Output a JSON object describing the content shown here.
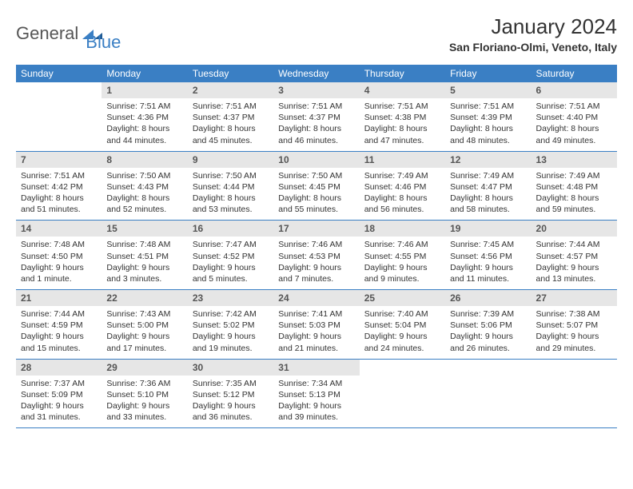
{
  "logo": {
    "word1": "General",
    "word2": "Blue"
  },
  "title": "January 2024",
  "location": "San Floriano-Olmi, Veneto, Italy",
  "colors": {
    "header_bg": "#3a7fc4",
    "header_text": "#ffffff",
    "daynum_bg": "#e6e6e6",
    "daynum_text": "#555555",
    "body_text": "#333333",
    "row_border": "#3a7fc4",
    "page_bg": "#ffffff"
  },
  "headers": [
    "Sunday",
    "Monday",
    "Tuesday",
    "Wednesday",
    "Thursday",
    "Friday",
    "Saturday"
  ],
  "weeks": [
    [
      {
        "blank": true
      },
      {
        "n": "1",
        "sr": "7:51 AM",
        "ss": "4:36 PM",
        "dl": "8 hours and 44 minutes."
      },
      {
        "n": "2",
        "sr": "7:51 AM",
        "ss": "4:37 PM",
        "dl": "8 hours and 45 minutes."
      },
      {
        "n": "3",
        "sr": "7:51 AM",
        "ss": "4:37 PM",
        "dl": "8 hours and 46 minutes."
      },
      {
        "n": "4",
        "sr": "7:51 AM",
        "ss": "4:38 PM",
        "dl": "8 hours and 47 minutes."
      },
      {
        "n": "5",
        "sr": "7:51 AM",
        "ss": "4:39 PM",
        "dl": "8 hours and 48 minutes."
      },
      {
        "n": "6",
        "sr": "7:51 AM",
        "ss": "4:40 PM",
        "dl": "8 hours and 49 minutes."
      }
    ],
    [
      {
        "n": "7",
        "sr": "7:51 AM",
        "ss": "4:42 PM",
        "dl": "8 hours and 51 minutes."
      },
      {
        "n": "8",
        "sr": "7:50 AM",
        "ss": "4:43 PM",
        "dl": "8 hours and 52 minutes."
      },
      {
        "n": "9",
        "sr": "7:50 AM",
        "ss": "4:44 PM",
        "dl": "8 hours and 53 minutes."
      },
      {
        "n": "10",
        "sr": "7:50 AM",
        "ss": "4:45 PM",
        "dl": "8 hours and 55 minutes."
      },
      {
        "n": "11",
        "sr": "7:49 AM",
        "ss": "4:46 PM",
        "dl": "8 hours and 56 minutes."
      },
      {
        "n": "12",
        "sr": "7:49 AM",
        "ss": "4:47 PM",
        "dl": "8 hours and 58 minutes."
      },
      {
        "n": "13",
        "sr": "7:49 AM",
        "ss": "4:48 PM",
        "dl": "8 hours and 59 minutes."
      }
    ],
    [
      {
        "n": "14",
        "sr": "7:48 AM",
        "ss": "4:50 PM",
        "dl": "9 hours and 1 minute."
      },
      {
        "n": "15",
        "sr": "7:48 AM",
        "ss": "4:51 PM",
        "dl": "9 hours and 3 minutes."
      },
      {
        "n": "16",
        "sr": "7:47 AM",
        "ss": "4:52 PM",
        "dl": "9 hours and 5 minutes."
      },
      {
        "n": "17",
        "sr": "7:46 AM",
        "ss": "4:53 PM",
        "dl": "9 hours and 7 minutes."
      },
      {
        "n": "18",
        "sr": "7:46 AM",
        "ss": "4:55 PM",
        "dl": "9 hours and 9 minutes."
      },
      {
        "n": "19",
        "sr": "7:45 AM",
        "ss": "4:56 PM",
        "dl": "9 hours and 11 minutes."
      },
      {
        "n": "20",
        "sr": "7:44 AM",
        "ss": "4:57 PM",
        "dl": "9 hours and 13 minutes."
      }
    ],
    [
      {
        "n": "21",
        "sr": "7:44 AM",
        "ss": "4:59 PM",
        "dl": "9 hours and 15 minutes."
      },
      {
        "n": "22",
        "sr": "7:43 AM",
        "ss": "5:00 PM",
        "dl": "9 hours and 17 minutes."
      },
      {
        "n": "23",
        "sr": "7:42 AM",
        "ss": "5:02 PM",
        "dl": "9 hours and 19 minutes."
      },
      {
        "n": "24",
        "sr": "7:41 AM",
        "ss": "5:03 PM",
        "dl": "9 hours and 21 minutes."
      },
      {
        "n": "25",
        "sr": "7:40 AM",
        "ss": "5:04 PM",
        "dl": "9 hours and 24 minutes."
      },
      {
        "n": "26",
        "sr": "7:39 AM",
        "ss": "5:06 PM",
        "dl": "9 hours and 26 minutes."
      },
      {
        "n": "27",
        "sr": "7:38 AM",
        "ss": "5:07 PM",
        "dl": "9 hours and 29 minutes."
      }
    ],
    [
      {
        "n": "28",
        "sr": "7:37 AM",
        "ss": "5:09 PM",
        "dl": "9 hours and 31 minutes."
      },
      {
        "n": "29",
        "sr": "7:36 AM",
        "ss": "5:10 PM",
        "dl": "9 hours and 33 minutes."
      },
      {
        "n": "30",
        "sr": "7:35 AM",
        "ss": "5:12 PM",
        "dl": "9 hours and 36 minutes."
      },
      {
        "n": "31",
        "sr": "7:34 AM",
        "ss": "5:13 PM",
        "dl": "9 hours and 39 minutes."
      },
      {
        "blank": true
      },
      {
        "blank": true
      },
      {
        "blank": true
      }
    ]
  ],
  "labels": {
    "sunrise": "Sunrise:",
    "sunset": "Sunset:",
    "daylight": "Daylight:"
  }
}
